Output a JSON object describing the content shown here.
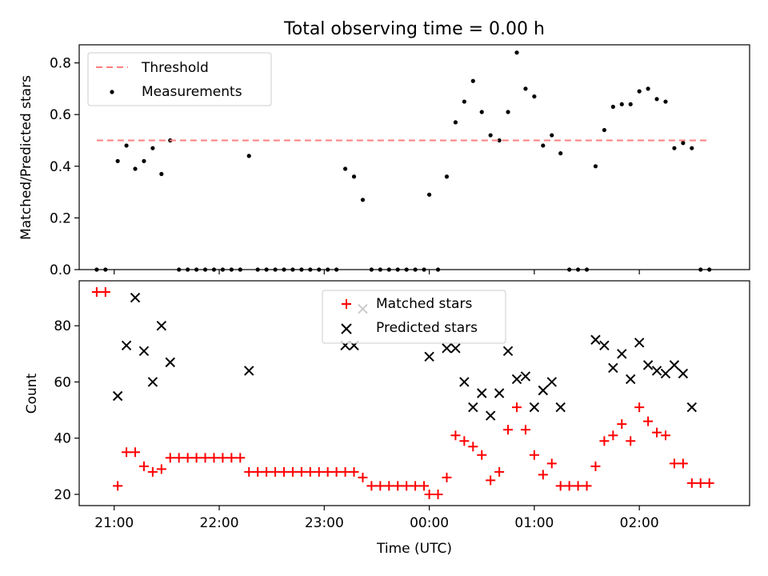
{
  "title": "Total observing time = 0.00 h",
  "xlabel": "Time (UTC)",
  "x_ticks": [
    "21:00",
    "22:00",
    "23:00",
    "00:00",
    "01:00",
    "02:00"
  ],
  "colors": {
    "threshold": "#ff7f7f",
    "measurements": "#000000",
    "matched": "#ff0000",
    "predicted": "#000000"
  },
  "chart_data": [
    {
      "type": "scatter",
      "ylabel": "Matched/Predicted stars",
      "ylim": [
        0,
        0.87
      ],
      "yticks": [
        "0.0",
        "0.2",
        "0.4",
        "0.6",
        "0.8"
      ],
      "xlim": [
        "20:40",
        "03:03"
      ],
      "legend_position": "top-left",
      "threshold": {
        "name": "Threshold",
        "y": 0.5,
        "x_start": "20:50",
        "x_end": "02:40"
      },
      "series": [
        {
          "name": "Measurements",
          "marker": "dot",
          "x": [
            "20:50",
            "20:55",
            "21:02",
            "21:07",
            "21:12",
            "21:17",
            "21:22",
            "21:27",
            "21:32",
            "21:37",
            "21:42",
            "21:47",
            "21:52",
            "21:57",
            "22:02",
            "22:07",
            "22:12",
            "22:17",
            "22:22",
            "22:27",
            "22:32",
            "22:37",
            "22:42",
            "22:47",
            "22:52",
            "22:57",
            "23:02",
            "23:07",
            "23:12",
            "23:17",
            "23:22",
            "23:27",
            "23:32",
            "23:37",
            "23:42",
            "23:47",
            "23:52",
            "23:57",
            "00:00",
            "00:05",
            "00:10",
            "00:15",
            "00:20",
            "00:25",
            "00:30",
            "00:35",
            "00:40",
            "00:45",
            "00:50",
            "00:55",
            "01:00",
            "01:05",
            "01:10",
            "01:15",
            "01:20",
            "01:25",
            "01:30",
            "01:35",
            "01:40",
            "01:45",
            "01:50",
            "01:55",
            "02:00",
            "02:05",
            "02:10",
            "02:15",
            "02:20",
            "02:25",
            "02:30",
            "02:35",
            "02:40"
          ],
          "y": [
            0,
            0,
            0.42,
            0.48,
            0.39,
            0.42,
            0.47,
            0.37,
            0.5,
            0,
            0,
            0,
            0,
            0,
            0,
            0,
            0,
            0.44,
            0,
            0,
            0,
            0,
            0,
            0,
            0,
            0,
            0,
            0,
            0.39,
            0.36,
            0.27,
            0,
            0,
            0,
            0,
            0,
            0,
            0,
            0.29,
            0,
            0.36,
            0.57,
            0.65,
            0.73,
            0.61,
            0.52,
            0.5,
            0.61,
            0.84,
            0.7,
            0.67,
            0.48,
            0.52,
            0.45,
            0,
            0,
            0,
            0.4,
            0.54,
            0.63,
            0.64,
            0.64,
            0.69,
            0.7,
            0.66,
            0.65,
            0.47,
            0.49,
            0.47,
            0,
            0
          ]
        }
      ]
    },
    {
      "type": "scatter",
      "ylabel": "Count",
      "ylim": [
        16,
        96
      ],
      "yticks": [
        "20",
        "40",
        "60",
        "80"
      ],
      "xlim": [
        "20:40",
        "03:03"
      ],
      "legend_position": "upper-center",
      "series": [
        {
          "name": "Matched stars",
          "marker": "plus",
          "x": [
            "20:50",
            "20:55",
            "21:02",
            "21:07",
            "21:12",
            "21:17",
            "21:22",
            "21:27",
            "21:32",
            "21:37",
            "21:42",
            "21:47",
            "21:52",
            "21:57",
            "22:02",
            "22:07",
            "22:12",
            "22:17",
            "22:22",
            "22:27",
            "22:32",
            "22:37",
            "22:42",
            "22:47",
            "22:52",
            "22:57",
            "23:02",
            "23:07",
            "23:12",
            "23:17",
            "23:22",
            "23:27",
            "23:32",
            "23:37",
            "23:42",
            "23:47",
            "23:52",
            "23:57",
            "00:00",
            "00:05",
            "00:10",
            "00:15",
            "00:20",
            "00:25",
            "00:30",
            "00:35",
            "00:40",
            "00:45",
            "00:50",
            "00:55",
            "01:00",
            "01:05",
            "01:10",
            "01:15",
            "01:20",
            "01:25",
            "01:30",
            "01:35",
            "01:40",
            "01:45",
            "01:50",
            "01:55",
            "02:00",
            "02:05",
            "02:10",
            "02:15",
            "02:20",
            "02:25",
            "02:30",
            "02:35",
            "02:40"
          ],
          "y": [
            92,
            92,
            23,
            35,
            35,
            30,
            28,
            29,
            33,
            33,
            33,
            33,
            33,
            33,
            33,
            33,
            33,
            28,
            28,
            28,
            28,
            28,
            28,
            28,
            28,
            28,
            28,
            28,
            28,
            28,
            26,
            23,
            23,
            23,
            23,
            23,
            23,
            23,
            20,
            20,
            26,
            41,
            39,
            37,
            34,
            25,
            28,
            43,
            51,
            43,
            34,
            27,
            31,
            23,
            23,
            23,
            23,
            30,
            39,
            41,
            45,
            39,
            51,
            46,
            42,
            41,
            31,
            31,
            24,
            24,
            24
          ]
        },
        {
          "name": "Predicted stars",
          "marker": "x",
          "x": [
            "21:02",
            "21:07",
            "21:12",
            "21:17",
            "21:22",
            "21:27",
            "21:32",
            "22:17",
            "23:12",
            "23:17",
            "23:22",
            "00:00",
            "00:10",
            "00:15",
            "00:20",
            "00:25",
            "00:30",
            "00:35",
            "00:40",
            "00:45",
            "00:50",
            "00:55",
            "01:00",
            "01:05",
            "01:10",
            "01:15",
            "01:35",
            "01:40",
            "01:45",
            "01:50",
            "01:55",
            "02:00",
            "02:05",
            "02:10",
            "02:15",
            "02:20",
            "02:25",
            "02:30"
          ],
          "y": [
            55,
            73,
            90,
            71,
            60,
            80,
            67,
            64,
            73,
            73,
            86,
            69,
            72,
            72,
            60,
            51,
            56,
            48,
            56,
            71,
            61,
            62,
            51,
            57,
            60,
            51,
            75,
            73,
            65,
            70,
            61,
            74,
            66,
            64,
            63,
            66,
            63,
            51
          ]
        }
      ]
    }
  ]
}
